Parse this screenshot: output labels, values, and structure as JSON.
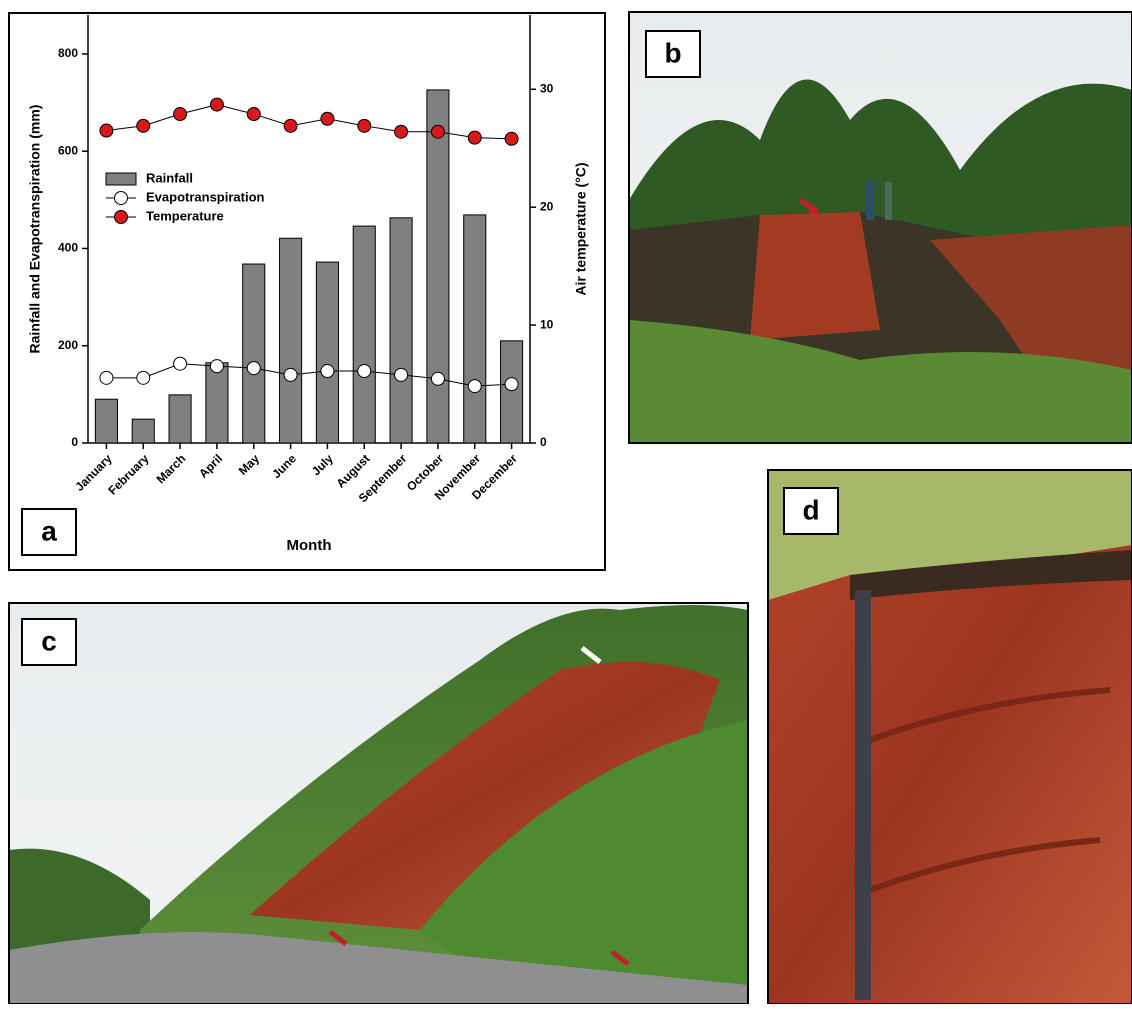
{
  "chart_data": {
    "type": "bar",
    "panel_label": "a",
    "categories": [
      "January",
      "February",
      "March",
      "April",
      "May",
      "June",
      "July",
      "August",
      "September",
      "October",
      "November",
      "December"
    ],
    "series": [
      {
        "name": "Rainfall",
        "type": "bar",
        "color": "#808080",
        "values": [
          90,
          49,
          99,
          165,
          368,
          421,
          372,
          446,
          463,
          726,
          469,
          210
        ]
      },
      {
        "name": "Evapotranspiration",
        "type": "line",
        "color": "#ffffff",
        "values": [
          134,
          134,
          163,
          158,
          154,
          140,
          148,
          148,
          140,
          132,
          117,
          121
        ]
      },
      {
        "name": "Temperature",
        "type": "line",
        "axis": "y2",
        "color": "#d7191c",
        "values": [
          26.5,
          26.9,
          27.9,
          28.7,
          27.9,
          26.9,
          27.5,
          26.9,
          26.4,
          26.4,
          25.9,
          25.8
        ]
      }
    ],
    "ylabel": "Rainfall and Evapotranspiration (mm)",
    "y2label": "Air temperature (°C)",
    "xlabel": "Month",
    "ylim": [
      0,
      880
    ],
    "yticks": [
      0,
      200,
      400,
      600,
      800
    ],
    "y2lim": [
      0,
      36.3
    ],
    "y2ticks": [
      0,
      10,
      20,
      30
    ],
    "grid": false
  },
  "panels": [
    "b",
    "c",
    "d"
  ]
}
